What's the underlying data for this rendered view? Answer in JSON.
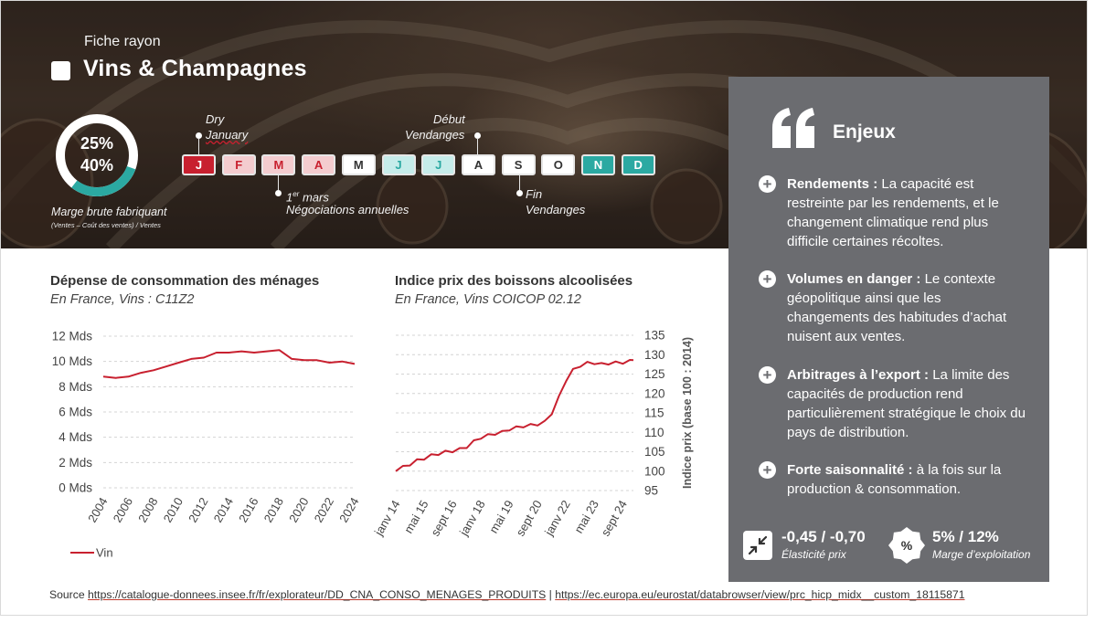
{
  "header": {
    "kicker": "Fiche rayon",
    "title": "Vins & Champagnes"
  },
  "margin": {
    "values": "25%\n40%",
    "line1": "25%",
    "line2": "40%",
    "label": "Marge brute fabriquant",
    "formula": "(Ventes – Coût des ventes) / Ventes",
    "fill_fraction": 0.3
  },
  "calendar": {
    "months": [
      {
        "letter": "J",
        "style": "strong-red"
      },
      {
        "letter": "F",
        "style": "light-red"
      },
      {
        "letter": "M",
        "style": "light-red"
      },
      {
        "letter": "A",
        "style": "light-red"
      },
      {
        "letter": "M",
        "style": "white"
      },
      {
        "letter": "J",
        "style": "light-teal"
      },
      {
        "letter": "J",
        "style": "light-teal"
      },
      {
        "letter": "A",
        "style": "white"
      },
      {
        "letter": "S",
        "style": "white"
      },
      {
        "letter": "O",
        "style": "white"
      },
      {
        "letter": "N",
        "style": "strong-teal"
      },
      {
        "letter": "D",
        "style": "strong-teal"
      }
    ],
    "events": {
      "dry_january_1": "Dry",
      "dry_january_2": "January",
      "negociations_1_base": "1",
      "negociations_1_sup": "er",
      "negociations_1_rest": " mars",
      "negociations_2": "Négociations annuelles",
      "debut_vendanges_1": "Début",
      "debut_vendanges_2": "Vendanges",
      "fin_vendanges_1": "Fin",
      "fin_vendanges_2": "Vendanges"
    },
    "colors": {
      "strong-red": "#c8202f",
      "light-red": "#f4cccf",
      "white": "#ffffff",
      "light-teal": "#c6ecea",
      "strong-teal": "#2ba9a2"
    }
  },
  "panel": {
    "title": "Enjeux",
    "issues": [
      {
        "label": "Rendements :",
        "text": " La capacité est restreinte par les rendements, et le changement climatique rend plus difficile certaines récoltes."
      },
      {
        "label": "Volumes en danger :",
        "text": " Le contexte géopolitique ainsi que les changements des habitudes d’achat nuisent aux ventes."
      },
      {
        "label": "Arbitrages à l’export :",
        "text": " La limite des capacités de production rend particulièrement stratégique le choix du pays de distribution."
      },
      {
        "label": "Forte saisonnalité :",
        "text": " à la fois sur la production & consommation."
      }
    ],
    "kpis": {
      "elasticity_value": "-0,45 / -0,70",
      "elasticity_label": "Élasticité prix",
      "margin_value": "5% / 12%",
      "margin_label": "Marge d’exploitation",
      "margin_icon_text": "%"
    }
  },
  "chart1": {
    "title": "Dépense de consommation des ménages",
    "subtitle": "En France, Vins : C11Z2",
    "legend": "Vin"
  },
  "chart2": {
    "title": "Indice prix des boissons alcoolisées",
    "subtitle": "En France, Vins COICOP 02.12",
    "ylabel": "Indice prix (base 100 : 2014)"
  },
  "chart_data": [
    {
      "type": "line",
      "title": "Dépense de consommation des ménages",
      "subtitle": "En France, Vins : C11Z2",
      "y_tick_labels": [
        "0 Mds",
        "2 Mds",
        "4 Mds",
        "6 Mds",
        "8 Mds",
        "10 Mds",
        "12 Mds"
      ],
      "ylim": [
        0,
        12
      ],
      "x_tick_labels": [
        "2004",
        "2006",
        "2008",
        "2010",
        "2012",
        "2014",
        "2016",
        "2018",
        "2020",
        "2022",
        "2024"
      ],
      "xlim": [
        2004,
        2024
      ],
      "grid": true,
      "legend": "bottom-left",
      "series": [
        {
          "name": "Vin",
          "color": "#c8202f",
          "x": [
            2004,
            2005,
            2006,
            2007,
            2008,
            2009,
            2010,
            2011,
            2012,
            2013,
            2014,
            2015,
            2016,
            2017,
            2018,
            2019,
            2020,
            2021,
            2022,
            2023,
            2024
          ],
          "y": [
            8.8,
            8.7,
            8.8,
            9.1,
            9.3,
            9.6,
            9.9,
            10.2,
            10.3,
            10.7,
            10.7,
            10.8,
            10.7,
            10.8,
            10.9,
            10.2,
            10.1,
            10.1,
            9.9,
            10.0,
            9.8
          ]
        }
      ]
    },
    {
      "type": "line",
      "title": "Indice prix des boissons alcoolisées",
      "subtitle": "En France, Vins COICOP 02.12",
      "ylabel": "Indice prix (base 100 : 2014)",
      "y_tick_labels": [
        "95",
        "100",
        "105",
        "110",
        "115",
        "120",
        "125",
        "130",
        "135"
      ],
      "ylim": [
        95,
        135
      ],
      "x_tick_labels": [
        "janv 14",
        "mai 15",
        "sept 16",
        "janv 18",
        "mai 19",
        "sept 20",
        "janv 22",
        "mai 23",
        "sept 24"
      ],
      "x_unit": "months since janv 14",
      "x_ticks": [
        0,
        16,
        32,
        48,
        64,
        80,
        96,
        112,
        128
      ],
      "xlim": [
        0,
        134
      ],
      "grid": true,
      "series": [
        {
          "name": "",
          "color": "#c8202f",
          "x": [
            0,
            4,
            8,
            12,
            16,
            20,
            24,
            28,
            32,
            36,
            40,
            44,
            48,
            52,
            56,
            60,
            64,
            68,
            72,
            76,
            80,
            84,
            88,
            92,
            96,
            100,
            104,
            108,
            112,
            116,
            120,
            124,
            128,
            132,
            134
          ],
          "y": [
            100.0,
            101.0,
            101.8,
            102.7,
            103.3,
            104.0,
            104.5,
            104.9,
            105.2,
            105.6,
            106.3,
            107.6,
            108.7,
            109.2,
            109.7,
            110.0,
            110.8,
            111.2,
            111.6,
            111.8,
            112.1,
            112.6,
            115.0,
            119.0,
            123.5,
            126.0,
            127.2,
            127.8,
            127.9,
            127.5,
            127.8,
            127.9,
            128.0,
            128.3,
            128.6
          ]
        }
      ]
    }
  ],
  "source": {
    "prefix": "Source ",
    "link1": "https://catalogue-donnees.insee.fr/fr/explorateur/DD_CNA_CONSO_MENAGES_PRODUITS",
    "sep": " | ",
    "link2": "https://ec.europa.eu/eurostat/databrowser/view/prc_hicp_midx__custom_18115871"
  }
}
